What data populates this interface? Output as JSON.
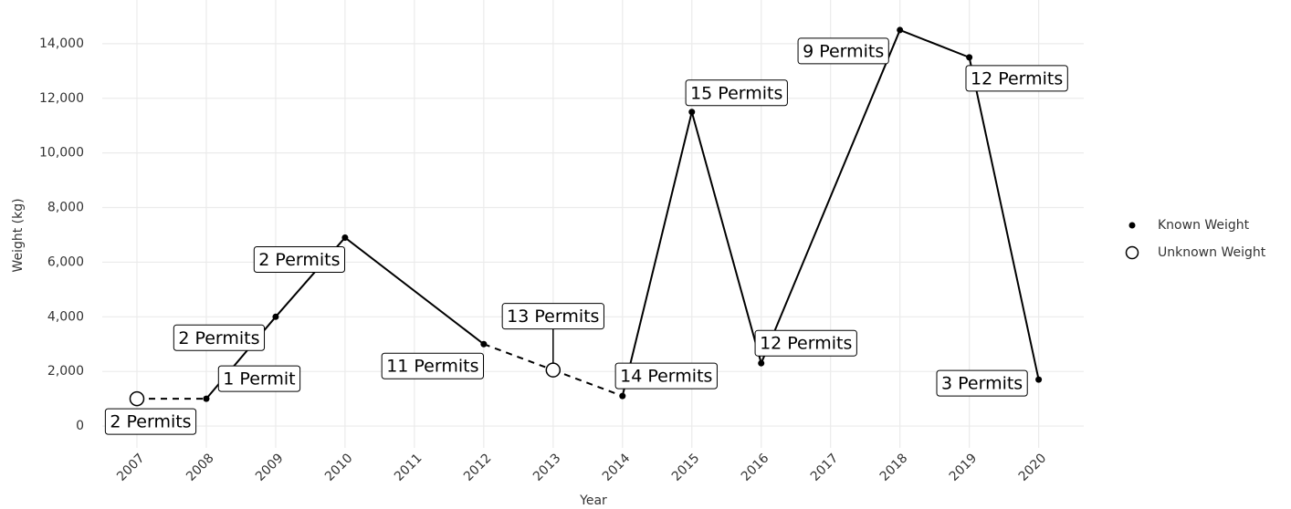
{
  "chart_data": {
    "type": "line",
    "x_label": "Year",
    "y_label": "Weight (kg)",
    "x": [
      2007,
      2008,
      2009,
      2010,
      2012,
      2013,
      2014,
      2015,
      2016,
      2018,
      2019,
      2020
    ],
    "values": [
      1000,
      1000,
      4000,
      6900,
      3000,
      2050,
      1100,
      11500,
      2300,
      14500,
      13500,
      1700
    ],
    "known": [
      false,
      true,
      true,
      true,
      true,
      false,
      true,
      true,
      true,
      true,
      true,
      true
    ],
    "annotations": [
      "2 Permits",
      "1 Permit",
      "2 Permits",
      "2 Permits",
      "11 Permits",
      "13 Permits",
      "14 Permits",
      "15 Permits",
      "12 Permits",
      "9 Permits",
      "12 Permits",
      "3 Permits"
    ],
    "legend": {
      "known": "Known Weight",
      "unknown": "Unknown Weight"
    },
    "color": "#000000",
    "xlim": [
      2006.5,
      2020.65
    ],
    "xticks": [
      2007,
      2008,
      2009,
      2010,
      2011,
      2012,
      2013,
      2014,
      2015,
      2016,
      2017,
      2018,
      2019,
      2020
    ],
    "ylim": [
      -800,
      15600
    ],
    "yticks": [
      0,
      {
        "value": 2000,
        "label": "2,000"
      },
      {
        "value": 4000,
        "label": "4,000"
      },
      {
        "value": 6000,
        "label": "6,000"
      },
      {
        "value": 8000,
        "label": "8,000"
      },
      {
        "value": 10000,
        "label": "10,000"
      },
      {
        "value": 12000,
        "label": "12,000"
      },
      {
        "value": 14000,
        "label": "14,000"
      }
    ],
    "grid": true
  }
}
